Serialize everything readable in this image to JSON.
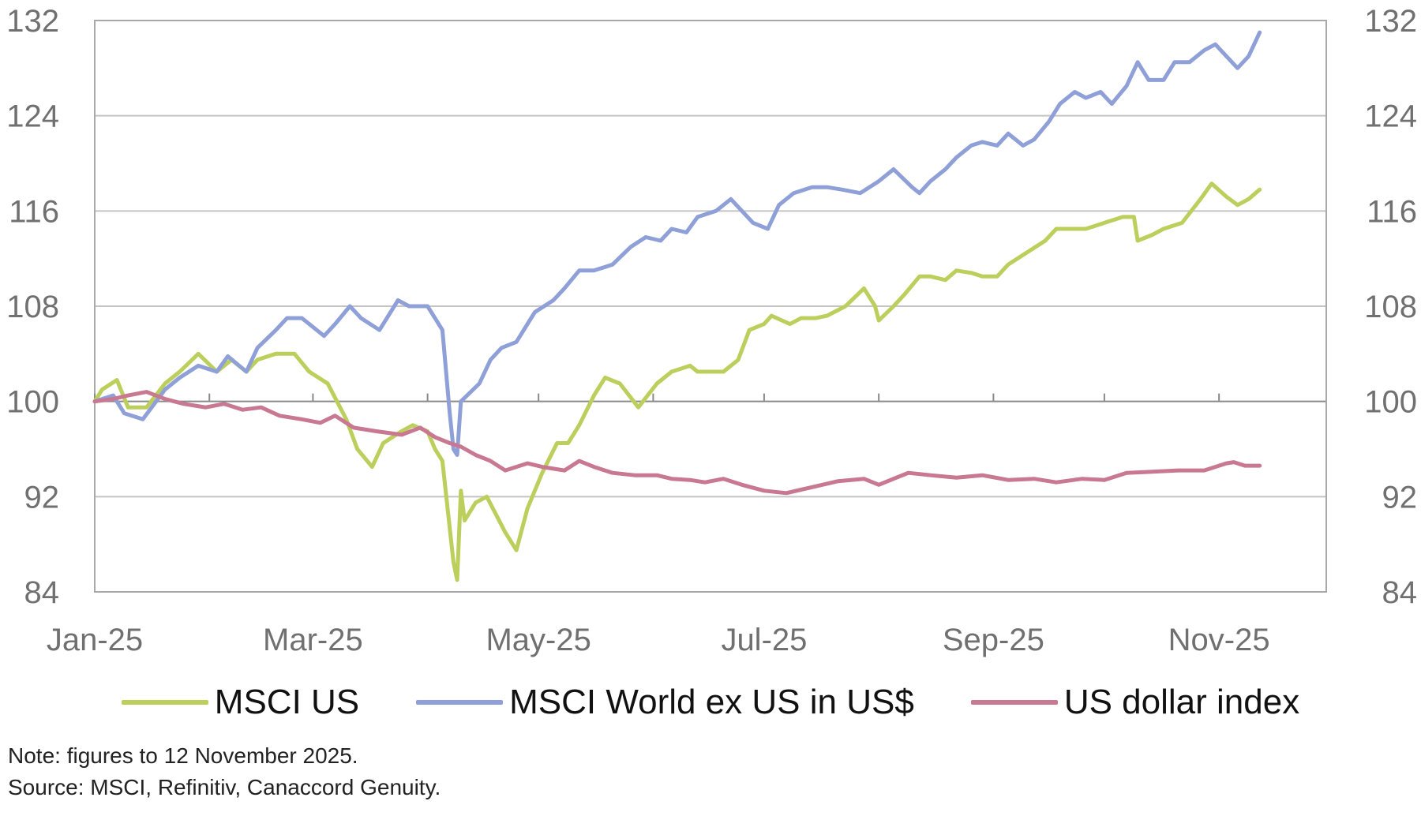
{
  "chart_data": {
    "type": "line",
    "title": "",
    "xlabel": "",
    "ylabel": "",
    "ylim": [
      84,
      132
    ],
    "yticks": [
      84,
      92,
      100,
      108,
      116,
      124,
      132
    ],
    "ytick_labels": [
      "84",
      "92",
      "100",
      "108",
      "116",
      "124",
      "132"
    ],
    "xlim": [
      "2025-01-01",
      "2025-11-30"
    ],
    "xtick_labels": [
      "Jan-25",
      "Mar-25",
      "May-25",
      "Jul-25",
      "Sep-25",
      "Nov-25"
    ],
    "xtick_dates": [
      "2025-01-01",
      "2025-03-01",
      "2025-05-01",
      "2025-07-01",
      "2025-09-01",
      "2025-11-01"
    ],
    "minor_xtick_dates": [
      "2025-02-01",
      "2025-04-01",
      "2025-06-01",
      "2025-08-01",
      "2025-10-01"
    ],
    "grid": "horizontal",
    "legend_position": "bottom",
    "series": [
      {
        "name": "MSCI US",
        "color": "#bccf5c",
        "points": [
          [
            "2025-01-01",
            100
          ],
          [
            "2025-01-03",
            101
          ],
          [
            "2025-01-07",
            101.8
          ],
          [
            "2025-01-10",
            99.5
          ],
          [
            "2025-01-15",
            99.5
          ],
          [
            "2025-01-20",
            101.5
          ],
          [
            "2025-01-24",
            102.5
          ],
          [
            "2025-01-29",
            104
          ],
          [
            "2025-02-03",
            102.5
          ],
          [
            "2025-02-07",
            103.5
          ],
          [
            "2025-02-11",
            102.5
          ],
          [
            "2025-02-14",
            103.5
          ],
          [
            "2025-02-19",
            104
          ],
          [
            "2025-02-24",
            104
          ],
          [
            "2025-02-28",
            102.5
          ],
          [
            "2025-03-05",
            101.5
          ],
          [
            "2025-03-10",
            98.5
          ],
          [
            "2025-03-13",
            96
          ],
          [
            "2025-03-17",
            94.5
          ],
          [
            "2025-03-20",
            96.5
          ],
          [
            "2025-03-25",
            97.5
          ],
          [
            "2025-03-28",
            98
          ],
          [
            "2025-04-01",
            97.5
          ],
          [
            "2025-04-03",
            96
          ],
          [
            "2025-04-05",
            95
          ],
          [
            "2025-04-08",
            86.5
          ],
          [
            "2025-04-09",
            85
          ],
          [
            "2025-04-10",
            92.5
          ],
          [
            "2025-04-11",
            90
          ],
          [
            "2025-04-14",
            91.5
          ],
          [
            "2025-04-17",
            92
          ],
          [
            "2025-04-22",
            89
          ],
          [
            "2025-04-25",
            87.5
          ],
          [
            "2025-04-28",
            91
          ],
          [
            "2025-05-02",
            94
          ],
          [
            "2025-05-06",
            96.5
          ],
          [
            "2025-05-09",
            96.5
          ],
          [
            "2025-05-12",
            98
          ],
          [
            "2025-05-16",
            100.5
          ],
          [
            "2025-05-19",
            102
          ],
          [
            "2025-05-23",
            101.5
          ],
          [
            "2025-05-28",
            99.5
          ],
          [
            "2025-06-02",
            101.5
          ],
          [
            "2025-06-06",
            102.5
          ],
          [
            "2025-06-11",
            103
          ],
          [
            "2025-06-13",
            102.5
          ],
          [
            "2025-06-18",
            102.5
          ],
          [
            "2025-06-20",
            102.5
          ],
          [
            "2025-06-24",
            103.5
          ],
          [
            "2025-06-27",
            106
          ],
          [
            "2025-07-01",
            106.5
          ],
          [
            "2025-07-03",
            107.2
          ],
          [
            "2025-07-08",
            106.5
          ],
          [
            "2025-07-11",
            107
          ],
          [
            "2025-07-15",
            107
          ],
          [
            "2025-07-18",
            107.2
          ],
          [
            "2025-07-23",
            108
          ],
          [
            "2025-07-28",
            109.5
          ],
          [
            "2025-07-31",
            108
          ],
          [
            "2025-08-01",
            106.8
          ],
          [
            "2025-08-05",
            108
          ],
          [
            "2025-08-08",
            109
          ],
          [
            "2025-08-12",
            110.5
          ],
          [
            "2025-08-15",
            110.5
          ],
          [
            "2025-08-19",
            110.2
          ],
          [
            "2025-08-22",
            111
          ],
          [
            "2025-08-26",
            110.8
          ],
          [
            "2025-08-29",
            110.5
          ],
          [
            "2025-09-02",
            110.5
          ],
          [
            "2025-09-05",
            111.5
          ],
          [
            "2025-09-10",
            112.5
          ],
          [
            "2025-09-15",
            113.5
          ],
          [
            "2025-09-18",
            114.5
          ],
          [
            "2025-09-23",
            114.5
          ],
          [
            "2025-09-26",
            114.5
          ],
          [
            "2025-10-01",
            115
          ],
          [
            "2025-10-06",
            115.5
          ],
          [
            "2025-10-09",
            115.5
          ],
          [
            "2025-10-10",
            113.5
          ],
          [
            "2025-10-14",
            114
          ],
          [
            "2025-10-17",
            114.5
          ],
          [
            "2025-10-22",
            115
          ],
          [
            "2025-10-27",
            117
          ],
          [
            "2025-10-30",
            118.3
          ],
          [
            "2025-11-03",
            117.2
          ],
          [
            "2025-11-06",
            116.5
          ],
          [
            "2025-11-09",
            117
          ],
          [
            "2025-11-12",
            117.8
          ]
        ]
      },
      {
        "name": "MSCI World ex US in US$",
        "color": "#8fa0d8",
        "points": [
          [
            "2025-01-01",
            100
          ],
          [
            "2025-01-06",
            100.5
          ],
          [
            "2025-01-09",
            99
          ],
          [
            "2025-01-14",
            98.5
          ],
          [
            "2025-01-20",
            101
          ],
          [
            "2025-01-24",
            102
          ],
          [
            "2025-01-29",
            103
          ],
          [
            "2025-02-03",
            102.5
          ],
          [
            "2025-02-06",
            103.8
          ],
          [
            "2025-02-11",
            102.5
          ],
          [
            "2025-02-14",
            104.5
          ],
          [
            "2025-02-19",
            106
          ],
          [
            "2025-02-22",
            107
          ],
          [
            "2025-02-26",
            107
          ],
          [
            "2025-02-28",
            106.5
          ],
          [
            "2025-03-04",
            105.5
          ],
          [
            "2025-03-07",
            106.5
          ],
          [
            "2025-03-11",
            108
          ],
          [
            "2025-03-14",
            107
          ],
          [
            "2025-03-19",
            106
          ],
          [
            "2025-03-21",
            107
          ],
          [
            "2025-03-24",
            108.5
          ],
          [
            "2025-03-27",
            108
          ],
          [
            "2025-04-01",
            108
          ],
          [
            "2025-04-03",
            107
          ],
          [
            "2025-04-05",
            106
          ],
          [
            "2025-04-07",
            99
          ],
          [
            "2025-04-08",
            96
          ],
          [
            "2025-04-09",
            95.5
          ],
          [
            "2025-04-10",
            100
          ],
          [
            "2025-04-15",
            101.5
          ],
          [
            "2025-04-18",
            103.5
          ],
          [
            "2025-04-21",
            104.5
          ],
          [
            "2025-04-25",
            105
          ],
          [
            "2025-04-30",
            107.5
          ],
          [
            "2025-05-05",
            108.5
          ],
          [
            "2025-05-08",
            109.5
          ],
          [
            "2025-05-12",
            111
          ],
          [
            "2025-05-16",
            111
          ],
          [
            "2025-05-21",
            111.5
          ],
          [
            "2025-05-26",
            113
          ],
          [
            "2025-05-30",
            113.8
          ],
          [
            "2025-06-03",
            113.5
          ],
          [
            "2025-06-06",
            114.5
          ],
          [
            "2025-06-10",
            114.2
          ],
          [
            "2025-06-13",
            115.5
          ],
          [
            "2025-06-18",
            116
          ],
          [
            "2025-06-22",
            117
          ],
          [
            "2025-06-25",
            116
          ],
          [
            "2025-06-28",
            115
          ],
          [
            "2025-07-02",
            114.5
          ],
          [
            "2025-07-05",
            116.5
          ],
          [
            "2025-07-09",
            117.5
          ],
          [
            "2025-07-14",
            118
          ],
          [
            "2025-07-18",
            118
          ],
          [
            "2025-07-22",
            117.8
          ],
          [
            "2025-07-27",
            117.5
          ],
          [
            "2025-08-01",
            118.5
          ],
          [
            "2025-08-05",
            119.5
          ],
          [
            "2025-08-10",
            118
          ],
          [
            "2025-08-12",
            117.5
          ],
          [
            "2025-08-15",
            118.5
          ],
          [
            "2025-08-19",
            119.5
          ],
          [
            "2025-08-22",
            120.5
          ],
          [
            "2025-08-26",
            121.5
          ],
          [
            "2025-08-29",
            121.8
          ],
          [
            "2025-09-02",
            121.5
          ],
          [
            "2025-09-05",
            122.5
          ],
          [
            "2025-09-09",
            121.5
          ],
          [
            "2025-09-12",
            122
          ],
          [
            "2025-09-16",
            123.5
          ],
          [
            "2025-09-19",
            125
          ],
          [
            "2025-09-23",
            126
          ],
          [
            "2025-09-26",
            125.5
          ],
          [
            "2025-09-30",
            126
          ],
          [
            "2025-10-03",
            125
          ],
          [
            "2025-10-07",
            126.5
          ],
          [
            "2025-10-10",
            128.5
          ],
          [
            "2025-10-13",
            127
          ],
          [
            "2025-10-17",
            127
          ],
          [
            "2025-10-20",
            128.5
          ],
          [
            "2025-10-24",
            128.5
          ],
          [
            "2025-10-28",
            129.5
          ],
          [
            "2025-10-31",
            130
          ],
          [
            "2025-11-03",
            129
          ],
          [
            "2025-11-06",
            128
          ],
          [
            "2025-11-09",
            129
          ],
          [
            "2025-11-12",
            131
          ]
        ]
      },
      {
        "name": "US dollar index",
        "color": "#c87890",
        "points": [
          [
            "2025-01-01",
            100
          ],
          [
            "2025-01-06",
            100.2
          ],
          [
            "2025-01-10",
            100.5
          ],
          [
            "2025-01-15",
            100.8
          ],
          [
            "2025-01-20",
            100.2
          ],
          [
            "2025-01-25",
            99.8
          ],
          [
            "2025-01-31",
            99.5
          ],
          [
            "2025-02-05",
            99.8
          ],
          [
            "2025-02-10",
            99.3
          ],
          [
            "2025-02-15",
            99.5
          ],
          [
            "2025-02-20",
            98.8
          ],
          [
            "2025-02-26",
            98.5
          ],
          [
            "2025-03-03",
            98.2
          ],
          [
            "2025-03-07",
            98.8
          ],
          [
            "2025-03-12",
            97.8
          ],
          [
            "2025-03-18",
            97.5
          ],
          [
            "2025-03-25",
            97.2
          ],
          [
            "2025-03-30",
            97.8
          ],
          [
            "2025-04-03",
            97
          ],
          [
            "2025-04-07",
            96.5
          ],
          [
            "2025-04-10",
            96.2
          ],
          [
            "2025-04-14",
            95.5
          ],
          [
            "2025-04-18",
            95
          ],
          [
            "2025-04-22",
            94.2
          ],
          [
            "2025-04-28",
            94.8
          ],
          [
            "2025-05-02",
            94.5
          ],
          [
            "2025-05-08",
            94.2
          ],
          [
            "2025-05-12",
            95
          ],
          [
            "2025-05-16",
            94.5
          ],
          [
            "2025-05-21",
            94
          ],
          [
            "2025-05-27",
            93.8
          ],
          [
            "2025-06-02",
            93.8
          ],
          [
            "2025-06-06",
            93.5
          ],
          [
            "2025-06-11",
            93.4
          ],
          [
            "2025-06-15",
            93.2
          ],
          [
            "2025-06-20",
            93.5
          ],
          [
            "2025-06-25",
            93
          ],
          [
            "2025-07-01",
            92.5
          ],
          [
            "2025-07-07",
            92.3
          ],
          [
            "2025-07-14",
            92.8
          ],
          [
            "2025-07-21",
            93.3
          ],
          [
            "2025-07-28",
            93.5
          ],
          [
            "2025-08-01",
            93
          ],
          [
            "2025-08-05",
            93.5
          ],
          [
            "2025-08-09",
            94
          ],
          [
            "2025-08-15",
            93.8
          ],
          [
            "2025-08-22",
            93.6
          ],
          [
            "2025-08-29",
            93.8
          ],
          [
            "2025-09-05",
            93.4
          ],
          [
            "2025-09-12",
            93.5
          ],
          [
            "2025-09-18",
            93.2
          ],
          [
            "2025-09-25",
            93.5
          ],
          [
            "2025-10-01",
            93.4
          ],
          [
            "2025-10-07",
            94
          ],
          [
            "2025-10-14",
            94.1
          ],
          [
            "2025-10-21",
            94.2
          ],
          [
            "2025-10-28",
            94.2
          ],
          [
            "2025-11-03",
            94.8
          ],
          [
            "2025-11-05",
            94.9
          ],
          [
            "2025-11-08",
            94.6
          ],
          [
            "2025-11-12",
            94.6
          ]
        ]
      }
    ]
  },
  "notes": {
    "line1": "Note: figures to 12 November 2025.",
    "line2": "Source: MSCI, Refinitiv, Canaccord Genuity."
  }
}
